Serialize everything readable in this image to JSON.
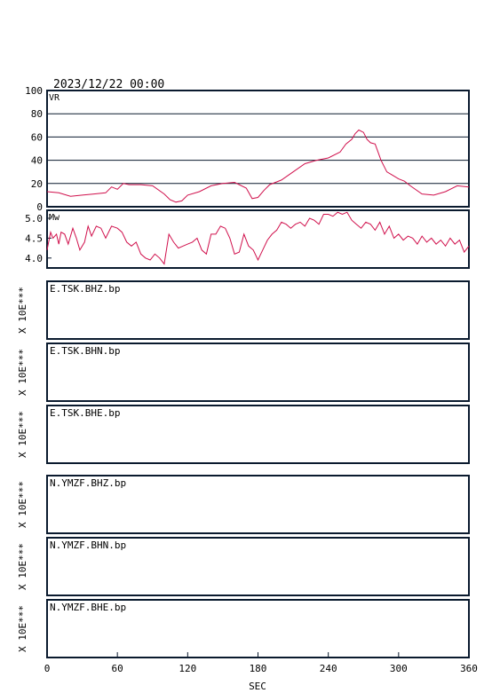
{
  "header": {
    "datetime": "2023/12/22 00:00"
  },
  "colors": {
    "trace": "#d0104c",
    "frame": "#0a1a2e"
  },
  "chart_data": [
    {
      "type": "line",
      "label": "VR",
      "ylim": [
        0,
        100
      ],
      "yticks": [
        "100",
        "80",
        "60",
        "40",
        "20",
        "0"
      ],
      "ytick_values": [
        100,
        80,
        60,
        40,
        20,
        0
      ],
      "grid": true,
      "xlim": [
        0,
        360
      ],
      "x": [
        0,
        10,
        20,
        30,
        40,
        50,
        55,
        60,
        65,
        70,
        80,
        90,
        100,
        105,
        110,
        115,
        120,
        130,
        140,
        150,
        160,
        170,
        175,
        180,
        185,
        190,
        200,
        210,
        220,
        230,
        240,
        250,
        255,
        260,
        263,
        266,
        270,
        273,
        276,
        280,
        285,
        290,
        295,
        300,
        305,
        310,
        320,
        330,
        340,
        350,
        360
      ],
      "values": [
        13,
        12,
        9,
        10,
        11,
        12,
        17,
        15,
        20,
        19,
        19,
        18,
        11,
        6,
        4,
        5,
        10,
        13,
        18,
        20,
        21,
        16,
        7,
        8,
        14,
        19,
        23,
        30,
        37,
        40,
        42,
        47,
        54,
        58,
        63,
        66,
        64,
        58,
        55,
        54,
        40,
        30,
        27,
        24,
        22,
        18,
        11,
        10,
        13,
        18,
        17
      ]
    },
    {
      "type": "line",
      "label": "Mw",
      "ylim": [
        3.75,
        5.2
      ],
      "yticks": [
        "5.0",
        "4.5",
        "4.0"
      ],
      "ytick_values": [
        5.0,
        4.5,
        4.0
      ],
      "xlim": [
        0,
        360
      ],
      "x": [
        0,
        3,
        5,
        8,
        10,
        12,
        15,
        18,
        22,
        25,
        28,
        32,
        35,
        38,
        42,
        46,
        50,
        55,
        60,
        64,
        68,
        72,
        76,
        80,
        84,
        88,
        92,
        96,
        100,
        104,
        108,
        112,
        116,
        120,
        124,
        128,
        132,
        136,
        140,
        144,
        148,
        152,
        156,
        160,
        164,
        168,
        172,
        176,
        180,
        184,
        188,
        192,
        196,
        200,
        204,
        208,
        212,
        216,
        220,
        224,
        228,
        232,
        236,
        240,
        244,
        248,
        252,
        256,
        260,
        264,
        268,
        272,
        276,
        280,
        284,
        288,
        292,
        296,
        300,
        304,
        308,
        312,
        316,
        320,
        324,
        328,
        332,
        336,
        340,
        344,
        348,
        352,
        356,
        360
      ],
      "values": [
        4.2,
        4.65,
        4.5,
        4.6,
        4.35,
        4.65,
        4.6,
        4.35,
        4.75,
        4.5,
        4.2,
        4.4,
        4.8,
        4.55,
        4.8,
        4.75,
        4.5,
        4.8,
        4.75,
        4.65,
        4.4,
        4.3,
        4.4,
        4.1,
        4.0,
        3.95,
        4.1,
        4.0,
        3.85,
        4.6,
        4.4,
        4.25,
        4.3,
        4.35,
        4.4,
        4.5,
        4.2,
        4.1,
        4.6,
        4.6,
        4.8,
        4.75,
        4.5,
        4.1,
        4.15,
        4.6,
        4.3,
        4.2,
        3.95,
        4.2,
        4.45,
        4.6,
        4.7,
        4.9,
        4.85,
        4.75,
        4.85,
        4.9,
        4.8,
        5.0,
        4.95,
        4.85,
        5.1,
        5.1,
        5.05,
        5.15,
        5.1,
        5.15,
        4.95,
        4.85,
        4.75,
        4.9,
        4.85,
        4.7,
        4.9,
        4.6,
        4.8,
        4.5,
        4.6,
        4.45,
        4.55,
        4.5,
        4.35,
        4.55,
        4.4,
        4.5,
        4.35,
        4.45,
        4.3,
        4.5,
        4.35,
        4.45,
        4.15,
        4.3
      ]
    }
  ],
  "waveform_panels": [
    {
      "label": "E.TSK.BHZ.bp",
      "scale_label": "X 10E***"
    },
    {
      "label": "E.TSK.BHN.bp",
      "scale_label": "X 10E***"
    },
    {
      "label": "E.TSK.BHE.bp",
      "scale_label": "X 10E***"
    },
    {
      "label": "N.YMZF.BHZ.bp",
      "scale_label": "X 10E***"
    },
    {
      "label": "N.YMZF.BHN.bp",
      "scale_label": "X 10E***"
    },
    {
      "label": "N.YMZF.BHE.bp",
      "scale_label": "X 10E***"
    }
  ],
  "x_axis": {
    "ticks": [
      "0",
      "60",
      "120",
      "180",
      "240",
      "300",
      "360"
    ],
    "tick_values": [
      0,
      60,
      120,
      180,
      240,
      300,
      360
    ],
    "label": "SEC"
  }
}
